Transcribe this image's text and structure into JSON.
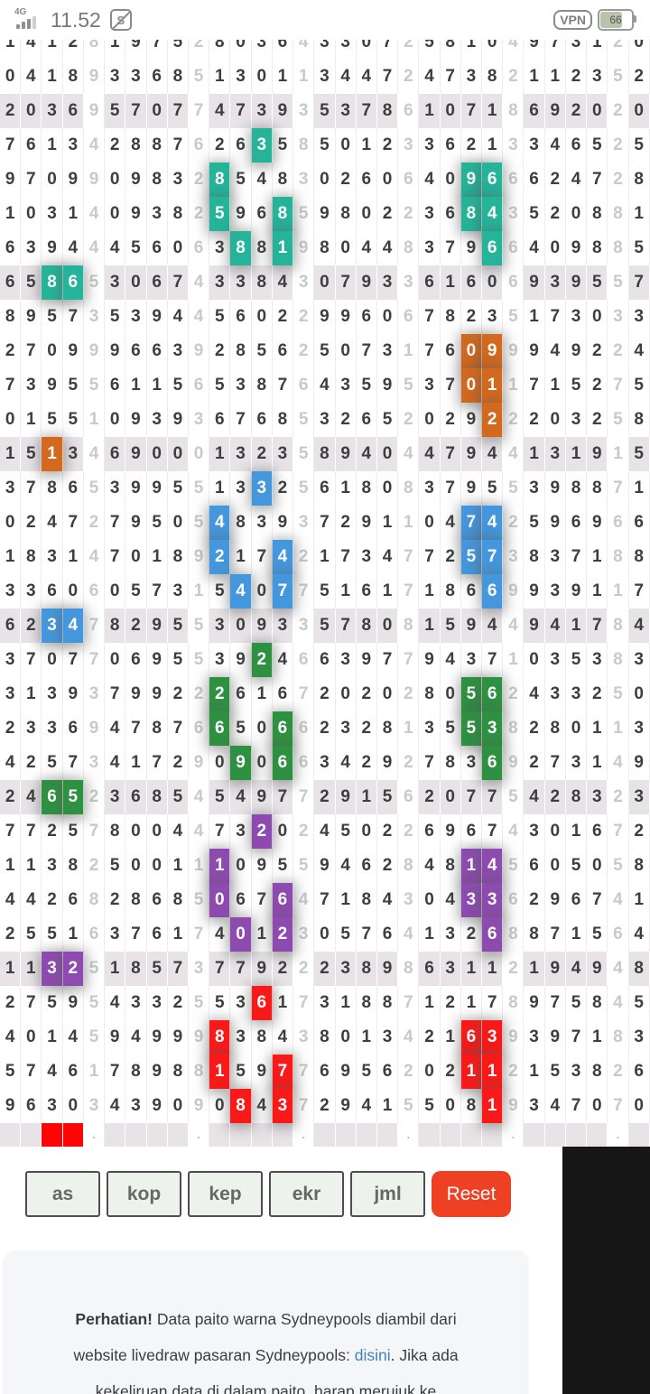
{
  "status_bar": {
    "network": "4G",
    "time": "11.52",
    "sim_badge": "S",
    "vpn_label": "VPN",
    "battery_percent": "66"
  },
  "colors": {
    "teal": "#25b49a",
    "orange": "#d2691e",
    "blue": "#4497dc",
    "green": "#2e9142",
    "purple": "#8d4bb0",
    "red": "#fa1919",
    "footer_red": "#ff0404",
    "row_stripe": "#e7e3e7",
    "digit": "#3e3e3e",
    "sum_digit": "#c9c9c9",
    "reset_bg": "#ee4023",
    "link_blue": "#4181bd"
  },
  "table": {
    "columns": 31,
    "separator_columns": [
      4,
      9,
      14,
      19,
      24,
      29
    ],
    "partial_top_row": "1412819752803643307258104973120",
    "rows": [
      {
        "d": "0418933685130113447247382112352",
        "stripe": false,
        "h": {}
      },
      {
        "d": "2036957077473935378610718692020",
        "stripe": true,
        "h": {}
      },
      {
        "d": "7613428876263585012336213346525",
        "stripe": false,
        "h": {
          "12": "teal"
        }
      },
      {
        "d": "9709909832854830260640966624728",
        "stripe": false,
        "h": {
          "10": "teal",
          "22": "teal",
          "23": "teal"
        }
      },
      {
        "d": "1031409382596859802236843520881",
        "stripe": false,
        "h": {
          "10": "teal",
          "13": "teal",
          "22": "teal",
          "23": "teal"
        }
      },
      {
        "d": "6394445606388198044837966409885",
        "stripe": false,
        "h": {
          "11": "teal",
          "13": "teal",
          "23": "teal"
        }
      },
      {
        "d": "6586530674338430793361606939557",
        "stripe": true,
        "h": {
          "2": "teal",
          "3": "teal"
        }
      },
      {
        "d": "8957353944560229960678235173033",
        "stripe": false,
        "h": {}
      },
      {
        "d": "2709996639285625073176099949224",
        "stripe": false,
        "h": {
          "22": "orange",
          "23": "orange"
        }
      },
      {
        "d": "7395561156538764359537011715275",
        "stripe": false,
        "h": {
          "22": "orange",
          "23": "orange"
        }
      },
      {
        "d": "0155109393676853265202922203258",
        "stripe": false,
        "h": {
          "23": "orange"
        }
      },
      {
        "d": "1513469000132358940447944131915",
        "stripe": true,
        "h": {
          "2": "orange"
        }
      },
      {
        "d": "3786539955133256180837955398871",
        "stripe": false,
        "h": {
          "12": "blue"
        }
      },
      {
        "d": "0247279505483937291104742596966",
        "stripe": false,
        "h": {
          "10": "blue",
          "22": "blue",
          "23": "blue"
        }
      },
      {
        "d": "1831470189217421734772573837188",
        "stripe": false,
        "h": {
          "10": "blue",
          "13": "blue",
          "22": "blue",
          "23": "blue"
        }
      },
      {
        "d": "3360605731540775161718669939117",
        "stripe": false,
        "h": {
          "11": "blue",
          "13": "blue",
          "23": "blue"
        }
      },
      {
        "d": "6234782955309335780815944941784",
        "stripe": true,
        "h": {
          "2": "blue",
          "3": "blue"
        }
      },
      {
        "d": "3707706955392466397794371035383",
        "stripe": false,
        "h": {
          "12": "green"
        }
      },
      {
        "d": "3139379922261672020280562433250",
        "stripe": false,
        "h": {
          "10": "green",
          "22": "green",
          "23": "green"
        }
      },
      {
        "d": "2336947876650662328135538280113",
        "stripe": false,
        "h": {
          "10": "green",
          "13": "green",
          "22": "green",
          "23": "green"
        }
      },
      {
        "d": "4257341729090663429278369273149",
        "stripe": false,
        "h": {
          "11": "green",
          "13": "green",
          "23": "green"
        }
      },
      {
        "d": "2465236854549772915620775428323",
        "stripe": true,
        "h": {
          "2": "green",
          "3": "green"
        }
      },
      {
        "d": "7725780044732024502269674301672",
        "stripe": false,
        "h": {
          "12": "purple"
        }
      },
      {
        "d": "1138250011109559462848145605058",
        "stripe": false,
        "h": {
          "10": "purple",
          "22": "purple",
          "23": "purple"
        }
      },
      {
        "d": "4426828685067647184304336296741",
        "stripe": false,
        "h": {
          "10": "purple",
          "13": "purple",
          "22": "purple",
          "23": "purple"
        }
      },
      {
        "d": "2551637617401230576413268871564",
        "stripe": false,
        "h": {
          "11": "purple",
          "13": "purple",
          "23": "purple"
        }
      },
      {
        "d": "1132518573779222389863112194948",
        "stripe": true,
        "h": {
          "2": "purple",
          "3": "purple"
        }
      },
      {
        "d": "2759543325536173188712178975845",
        "stripe": false,
        "h": {
          "12": "red"
        }
      },
      {
        "d": "4014594999838438013421639397183",
        "stripe": false,
        "h": {
          "10": "red",
          "22": "red",
          "23": "red"
        }
      },
      {
        "d": "5746178988159776956202112153826",
        "stripe": false,
        "h": {
          "10": "red",
          "13": "red",
          "22": "red",
          "23": "red"
        }
      },
      {
        "d": "9630343909084372941550819347070",
        "stripe": false,
        "h": {
          "11": "red",
          "13": "red",
          "23": "red"
        }
      }
    ],
    "footer": {
      "red_columns": [
        2,
        3
      ],
      "dot": "."
    }
  },
  "controls": {
    "filters": [
      "as",
      "kop",
      "kep",
      "ekr",
      "jml"
    ],
    "reset_label": "Reset"
  },
  "notice": {
    "bold": "Perhatian!",
    "pre": " Data paito warna Sydneypools diambil dari website livedraw pasaran Sydneypools: ",
    "link": "disini",
    "post": ". Jika ada kekeliruan data di dalam paito, harap merujuk ke"
  }
}
